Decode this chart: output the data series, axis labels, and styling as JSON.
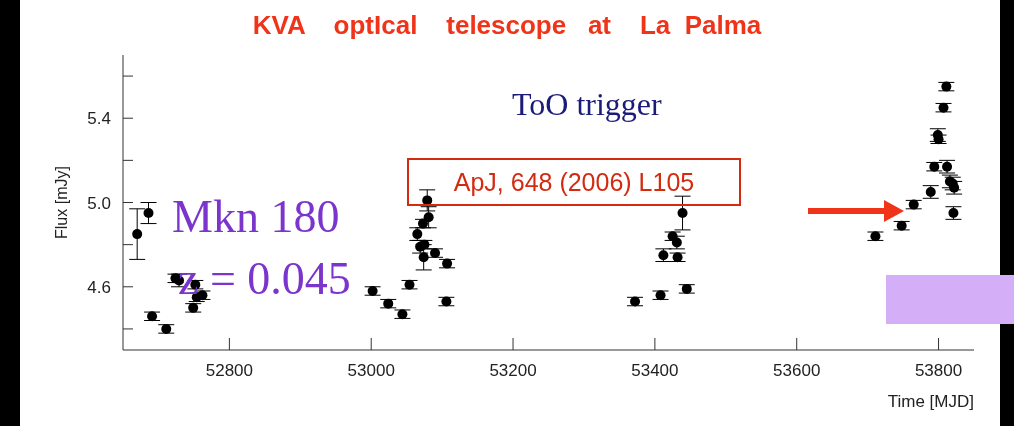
{
  "chart_data": {
    "type": "scatter",
    "title": "KVA    optIcal    telescope   at    La  Palma",
    "xlabel": "Time [MJD]",
    "ylabel": "Flux [mJy]",
    "annotations": [
      "ToO trigger",
      "ApJ, 648 (2006) L105",
      "Mkn 180",
      "z = 0.045"
    ],
    "x": [
      52670,
      52686,
      52691,
      52711,
      52724,
      52729,
      52752,
      52749,
      52754,
      52762,
      53002,
      53024,
      53044,
      53054,
      53079,
      53081,
      53073,
      53065,
      53069,
      53075,
      53074,
      53090,
      53107,
      53106,
      53439,
      53425,
      53431,
      53412,
      53432,
      53445,
      53408,
      53372,
      53711,
      53748,
      53765,
      53789,
      53794,
      53799,
      53800,
      53807,
      53811,
      53812,
      53816,
      53820,
      53822,
      53821
    ],
    "series": [
      {
        "color": "#000000",
        "values": [
          4.85,
          4.95,
          4.46,
          4.4,
          4.64,
          4.63,
          4.61,
          4.5,
          4.55,
          4.56,
          4.58,
          4.52,
          4.47,
          4.61,
          5.01,
          4.93,
          4.9,
          4.85,
          4.79,
          4.8,
          4.74,
          4.76,
          4.71,
          4.53,
          4.95,
          4.84,
          4.81,
          4.75,
          4.74,
          4.59,
          4.56,
          4.53,
          4.84,
          4.89,
          4.99,
          5.05,
          5.17,
          5.32,
          5.3,
          5.45,
          5.55,
          5.17,
          5.1,
          5.09,
          5.07,
          4.95
        ],
        "errors": [
          0.12,
          0.05,
          0.02,
          0.02,
          0.02,
          0.03,
          0.02,
          0.02,
          0.02,
          0.02,
          0.02,
          0.02,
          0.02,
          0.02,
          0.05,
          0.05,
          0.02,
          0.03,
          0.03,
          0.02,
          0.06,
          0.02,
          0.02,
          0.02,
          0.08,
          0.02,
          0.03,
          0.03,
          0.02,
          0.02,
          0.02,
          0.02,
          0.02,
          0.02,
          0.02,
          0.03,
          0.02,
          0.03,
          0.02,
          0.02,
          0.02,
          0.03,
          0.03,
          0.03,
          0.03,
          0.03
        ]
      }
    ],
    "xlim": [
      52650,
      53850
    ],
    "xticks": [
      52800,
      53000,
      53200,
      53400,
      53600,
      53800
    ],
    "ylim": [
      4.3,
      5.7
    ],
    "yticks": [
      {
        "value": 4.4,
        "label": null
      },
      {
        "value": 4.6,
        "label": "4.6"
      },
      {
        "value": 4.8,
        "label": null
      },
      {
        "value": 5.0,
        "label": "5.0"
      },
      {
        "value": 5.2,
        "label": null
      },
      {
        "value": 5.4,
        "label": "5.4"
      },
      {
        "value": 5.6,
        "label": null
      }
    ],
    "marker": "circle",
    "grid": false
  }
}
